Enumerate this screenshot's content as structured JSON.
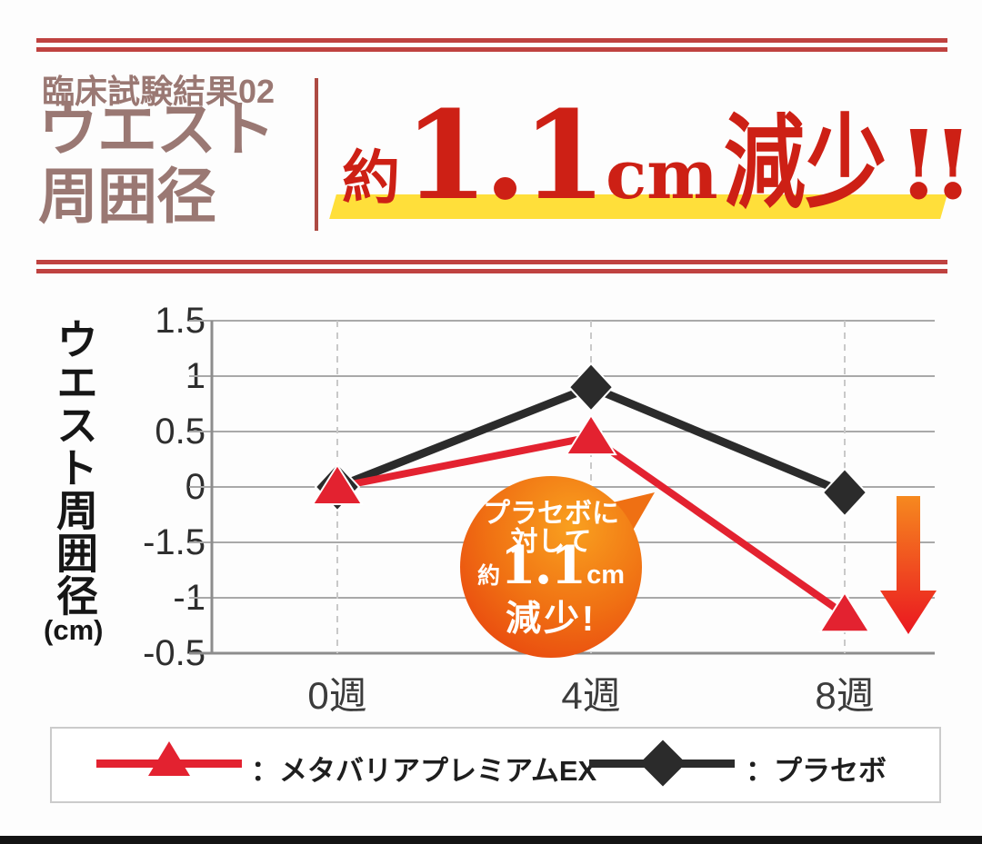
{
  "header": {
    "eyebrow": "臨床試験結果02",
    "title_line1": "ウエスト",
    "title_line2": "周囲径",
    "headline_prefix": "約",
    "headline_value": "1.1",
    "headline_unit": "cm",
    "headline_suffix": "減少",
    "headline_bang": "!!"
  },
  "colors": {
    "headline_red": "#cd2015",
    "highlight_yellow": "#ffdf3a",
    "title_brown": "#9a7873",
    "rule_red": "#bf4240",
    "series_red": "#e32230",
    "series_black": "#2b2b2b",
    "bubble_orange_top": "#f9a01f",
    "bubble_orange_bottom": "#e8430f",
    "arrow_gradient_top": "#f6891f",
    "arrow_gradient_bottom": "#ea1520"
  },
  "chart_data": {
    "type": "line",
    "categories": [
      "0週",
      "4週",
      "8週"
    ],
    "series": [
      {
        "name": "メタバリアプレミアムEX",
        "values": [
          0,
          0.45,
          -1.15
        ],
        "color": "#e32230",
        "marker": "triangle"
      },
      {
        "name": "プラセボ",
        "values": [
          0,
          0.9,
          -0.05
        ],
        "color": "#2b2b2b",
        "marker": "diamond"
      }
    ],
    "ylabel": "ウエスト周囲径",
    "ylabel_unit": "(cm)",
    "y_tick_labels_top_to_bottom": [
      "1.5",
      "1",
      "0.5",
      "0",
      "-1.5",
      "-1",
      "-0.5"
    ],
    "grid": true,
    "vertical_gridlines": "dashed",
    "legend_position": "bottom",
    "annotation": "プラセボに対して約1.1cm減少!"
  },
  "callout": {
    "line1": "プラセボに",
    "line2": "対して",
    "prefix": "約",
    "value": "1.1",
    "unit": "cm",
    "line3": "減少!"
  },
  "legend": {
    "item1_label": "：メタバリアプレミアムEX",
    "item2_label": "：プラセボ"
  }
}
